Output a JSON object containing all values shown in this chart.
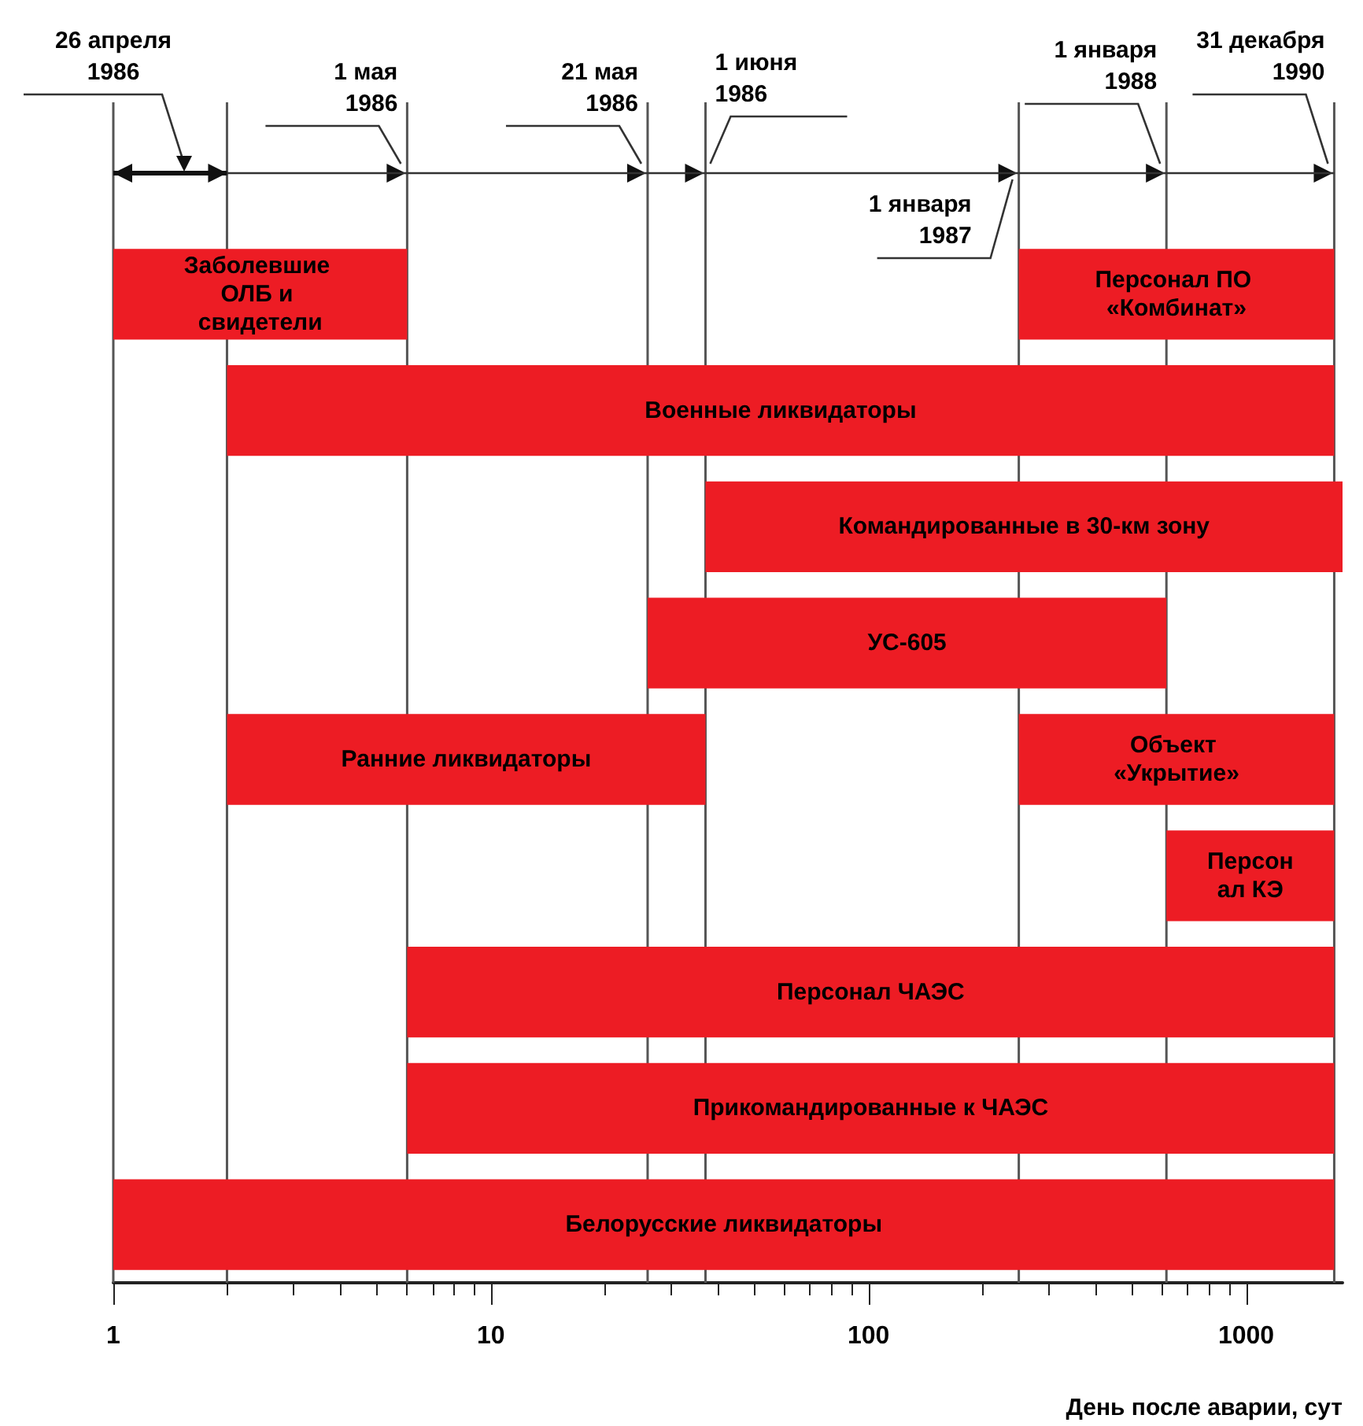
{
  "chart_data": {
    "type": "bar",
    "orientation": "horizontal",
    "xlabel": "День после аварии, сут",
    "log": "x",
    "xlim": [
      1,
      1800
    ],
    "xticks": [
      1,
      10,
      100,
      1000
    ],
    "tick_labels": "x",
    "grid": false,
    "categories": [
      null,
      null,
      null,
      null,
      null,
      null,
      null,
      null,
      null
    ],
    "series": [
      {
        "name": "Заболевшие ОЛБ и свидетели",
        "color": "#ed1c24",
        "base": [
          1,
          null,
          null,
          null,
          null,
          null,
          null,
          null,
          null
        ],
        "values": [
          5,
          null,
          null,
          null,
          null,
          null,
          null,
          null,
          null
        ]
      },
      {
        "name": "Персонал ПО «Комбинат»",
        "color": "#ed1c24",
        "base": [
          250,
          null,
          null,
          null,
          null,
          null,
          null,
          null,
          null
        ],
        "values": [
          1461,
          null,
          null,
          null,
          null,
          null,
          null,
          null,
          null
        ]
      },
      {
        "name": "Военные ликвидаторы",
        "color": "#ed1c24",
        "base": [
          null,
          2,
          null,
          null,
          null,
          null,
          null,
          null,
          null
        ],
        "values": [
          null,
          1709,
          null,
          null,
          null,
          null,
          null,
          null,
          null
        ]
      },
      {
        "name": "Командированные в 30-км зону",
        "color": "#ed1c24",
        "base": [
          null,
          null,
          37,
          null,
          null,
          null,
          null,
          null,
          null
        ],
        "values": [
          null,
          null,
          1763,
          null,
          null,
          null,
          null,
          null,
          null
        ]
      },
      {
        "name": "УС-605",
        "color": "#ed1c24",
        "base": [
          null,
          null,
          null,
          26,
          null,
          null,
          null,
          null,
          null
        ],
        "values": [
          null,
          null,
          null,
          589,
          null,
          null,
          null,
          null,
          null
        ]
      },
      {
        "name": "Ранние ликвидаторы",
        "color": "#ed1c24",
        "base": [
          null,
          null,
          null,
          null,
          2,
          null,
          null,
          null,
          null
        ],
        "values": [
          null,
          null,
          null,
          null,
          35,
          null,
          null,
          null,
          null
        ]
      },
      {
        "name": "Объект «Укрытие»",
        "color": "#ed1c24",
        "base": [
          null,
          null,
          null,
          null,
          250,
          null,
          null,
          null,
          null
        ],
        "values": [
          null,
          null,
          null,
          null,
          1461,
          null,
          null,
          null,
          null
        ]
      },
      {
        "name": "Персонал КЭ",
        "color": "#ed1c24",
        "base": [
          null,
          null,
          null,
          null,
          null,
          615,
          null,
          null,
          null
        ],
        "values": [
          null,
          null,
          null,
          null,
          null,
          1096,
          null,
          null,
          null
        ]
      },
      {
        "name": "Персонал ЧАЭС",
        "color": "#ed1c24",
        "base": [
          null,
          null,
          null,
          null,
          null,
          null,
          6,
          null,
          null
        ],
        "values": [
          null,
          null,
          null,
          null,
          null,
          null,
          1705,
          null,
          null
        ]
      },
      {
        "name": "Прикомандированные к ЧАЭС",
        "color": "#ed1c24",
        "base": [
          null,
          null,
          null,
          null,
          null,
          null,
          null,
          6,
          null
        ],
        "values": [
          null,
          null,
          null,
          null,
          null,
          null,
          null,
          1705,
          null
        ]
      },
      {
        "name": "Белорусские ликвидаторы",
        "color": "#ed1c24",
        "base": [
          null,
          null,
          null,
          null,
          null,
          null,
          null,
          null,
          1
        ],
        "values": [
          null,
          null,
          null,
          null,
          null,
          null,
          null,
          null,
          1710
        ]
      }
    ],
    "ref_lines": [
      {
        "axis": "x",
        "value": 1,
        "label": "26 апреля 1986",
        "color": "#555555"
      },
      {
        "axis": "x",
        "value": 2,
        "label": null,
        "color": "#555555"
      },
      {
        "axis": "x",
        "value": 6,
        "label": "1 мая 1986",
        "color": "#555555"
      },
      {
        "axis": "x",
        "value": 26,
        "label": "21 мая 1986",
        "color": "#555555"
      },
      {
        "axis": "x",
        "value": 37,
        "label": "1 июня 1986",
        "color": "#555555"
      },
      {
        "axis": "x",
        "value": 250,
        "label": "1 января 1987",
        "color": "#555555"
      },
      {
        "axis": "x",
        "value": 615,
        "label": "1 января 1988",
        "color": "#555555"
      },
      {
        "axis": "x",
        "value": 1711,
        "label": "31 декабря 1990",
        "color": "#555555"
      }
    ]
  }
}
